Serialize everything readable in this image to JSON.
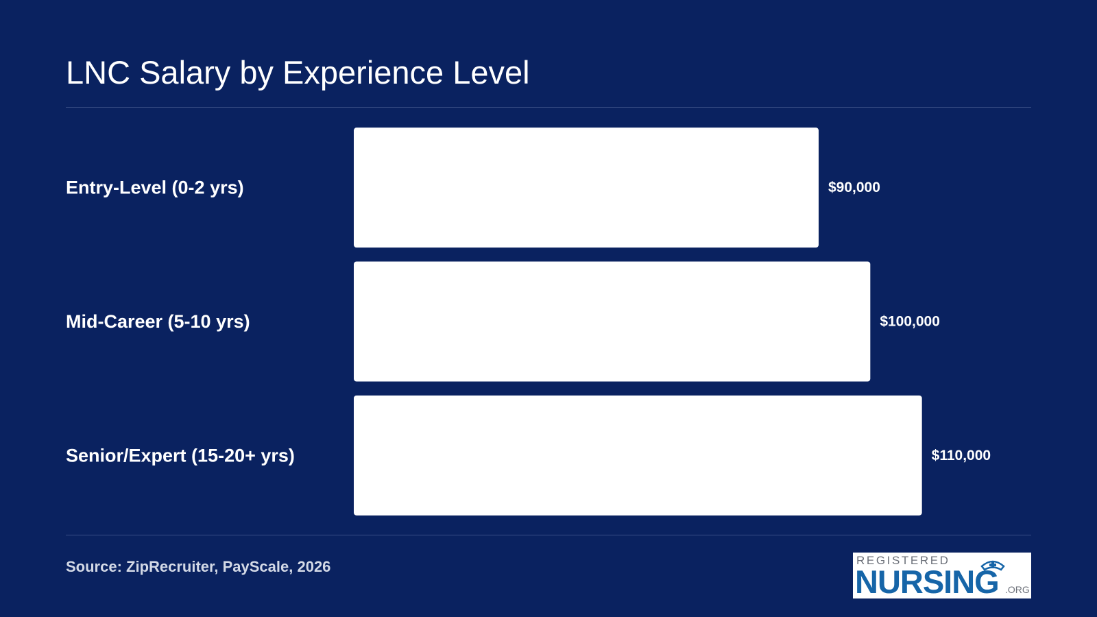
{
  "chart_data": {
    "type": "bar",
    "orientation": "horizontal",
    "title": "LNC Salary by Experience Level",
    "categories": [
      "Entry-Level (0-2 yrs)",
      "Mid-Career (5-10 yrs)",
      "Senior/Expert (15-20+ yrs)"
    ],
    "values": [
      90000,
      100000,
      110000
    ],
    "value_labels": [
      "$90,000",
      "$100,000",
      "$110,000"
    ],
    "xlim": [
      0,
      120000
    ],
    "grid": false,
    "bar_color": "#ffffff",
    "background_color": "#0a2260"
  },
  "footer": {
    "source": "Source: ZipRecruiter, PayScale, 2026"
  },
  "logo": {
    "top_text": "REGISTERED",
    "main_text": "NURSING",
    "suffix_text": ".ORG",
    "icon": "nurse-cap-icon",
    "main_color": "#1665a8"
  }
}
